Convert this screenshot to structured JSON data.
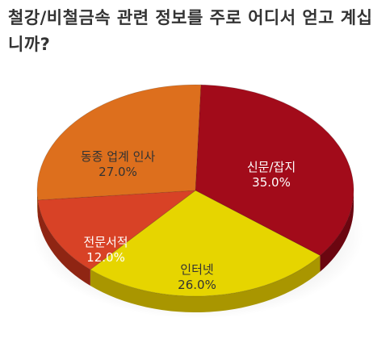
{
  "chart_data": {
    "type": "pie",
    "title": "철강/비철금속 관련 정보를 주로 어디서 얻고 계십니까?",
    "categories": [
      "신문/잡지",
      "인터넷",
      "전문서적",
      "동종 업계 인사"
    ],
    "values": [
      35.0,
      26.0,
      12.0,
      27.0
    ],
    "value_labels": [
      "35.0%",
      "26.0%",
      "12.0%",
      "27.0%"
    ],
    "legend": "none",
    "style": "3d"
  },
  "colors": {
    "slices": [
      "#a20b1a",
      "#e6d500",
      "#d84226",
      "#dd6f1d"
    ],
    "sides": [
      "#6b0610",
      "#a99600",
      "#8f2513",
      "#9c4a10"
    ],
    "label_text": [
      "#ffffff",
      "#333333",
      "#ffffff",
      "#333333"
    ],
    "title_text": "#333333"
  }
}
